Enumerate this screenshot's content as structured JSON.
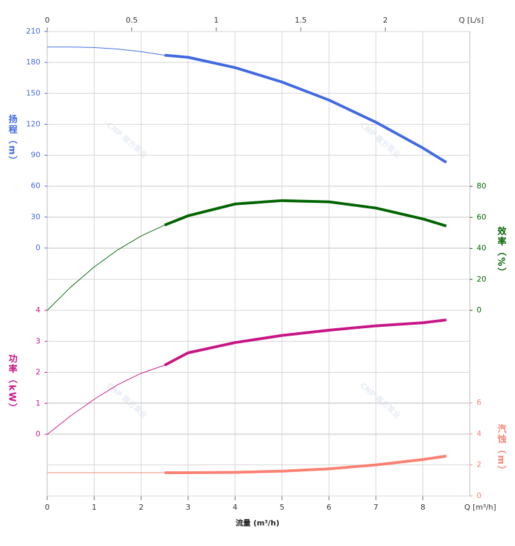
{
  "chart_data": {
    "type": "line",
    "x_label": "流量 (m³/h)",
    "x_unit_label": "Q [m³/h]",
    "x2_unit_label": "Q [L/s]",
    "xlim": [
      0,
      9
    ],
    "xticks": [
      0,
      1,
      2,
      3,
      4,
      5,
      6,
      7,
      8
    ],
    "x2lim": [
      0,
      2.5
    ],
    "x2ticks": [
      0,
      0.5,
      1,
      1.5,
      2
    ],
    "grid": true,
    "operating_range": [
      2.5,
      8.5
    ],
    "watermark": "CNP 南方泵业",
    "x": [
      0,
      0.5,
      1,
      1.5,
      2,
      2.5,
      3,
      4,
      5,
      6,
      7,
      8,
      8.5
    ],
    "series": [
      {
        "name": "扬程（m）",
        "color": "#4169e1",
        "axis": "left",
        "ylim": [
          0,
          210
        ],
        "yticks": [
          0,
          30,
          60,
          90,
          120,
          150,
          180,
          210
        ],
        "values": [
          195,
          195,
          194.5,
          193,
          190.5,
          187,
          185,
          175,
          161,
          143.5,
          122,
          97,
          83
        ]
      },
      {
        "name": "效率（%）",
        "color": "#006400",
        "axis": "right",
        "ylim": [
          0,
          80
        ],
        "yticks": [
          0,
          20,
          40,
          60,
          80
        ],
        "values": [
          0,
          15,
          28,
          39,
          48,
          55,
          61,
          68.6,
          70.8,
          70,
          66,
          59,
          54.4
        ]
      },
      {
        "name": "功率（kW）",
        "color": "#c71585",
        "axis": "left",
        "ylim": [
          0,
          4
        ],
        "yticks": [
          0,
          1,
          2,
          3,
          4
        ],
        "values": [
          0,
          0.6,
          1.13,
          1.6,
          1.97,
          2.23,
          2.63,
          2.96,
          3.19,
          3.36,
          3.5,
          3.6,
          3.69
        ]
      },
      {
        "name": "汽蚀（m）",
        "color": "#fa8072",
        "axis": "right",
        "ylim": [
          0,
          6
        ],
        "yticks": [
          0,
          2,
          4,
          6
        ],
        "values": [
          1.5,
          1.5,
          1.5,
          1.5,
          1.5,
          1.5,
          1.5,
          1.52,
          1.6,
          1.75,
          2.0,
          2.35,
          2.57
        ]
      }
    ]
  }
}
